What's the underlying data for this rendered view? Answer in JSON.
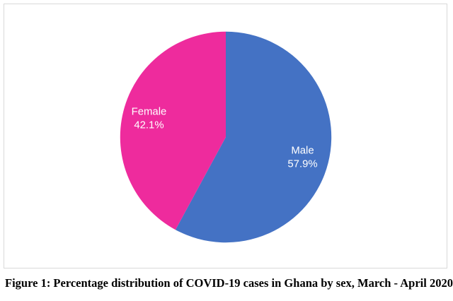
{
  "figure": {
    "caption": "Figure 1: Percentage distribution of COVID-19 cases in Ghana by sex, March - April 2020"
  },
  "chart_data": {
    "type": "pie",
    "title": "",
    "slices": [
      {
        "label": "Male",
        "value": 57.9,
        "display": "57.9%",
        "color": "#4472C4"
      },
      {
        "label": "Female",
        "value": 42.1,
        "display": "42.1%",
        "color": "#EE2B9D"
      }
    ],
    "start_angle_deg": 0,
    "direction": "clockwise",
    "label_color": "#FFFFFF",
    "legend": "none",
    "grid": false
  },
  "colors": {
    "chart_border": "#D9D9D9",
    "background": "#FFFFFF"
  }
}
